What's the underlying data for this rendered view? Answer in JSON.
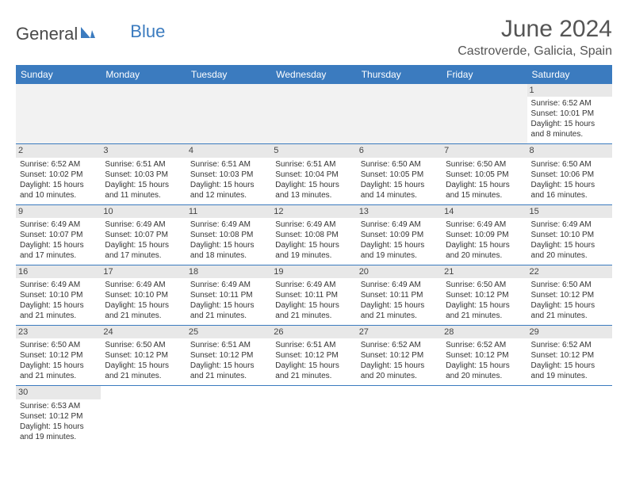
{
  "logo": {
    "text1": "General",
    "text2": "Blue"
  },
  "header": {
    "month": "June 2024",
    "location": "Castroverde, Galicia, Spain"
  },
  "colors": {
    "header_bg": "#3b7bbf",
    "header_text": "#ffffff",
    "daynum_bg": "#e8e8e8",
    "border": "#3b7bbf",
    "empty_bg": "#f2f2f2"
  },
  "weekdays": [
    "Sunday",
    "Monday",
    "Tuesday",
    "Wednesday",
    "Thursday",
    "Friday",
    "Saturday"
  ],
  "weeks": [
    [
      null,
      null,
      null,
      null,
      null,
      null,
      {
        "d": "1",
        "sr": "6:52 AM",
        "ss": "10:01 PM",
        "dl": "15 hours and 8 minutes."
      }
    ],
    [
      {
        "d": "2",
        "sr": "6:52 AM",
        "ss": "10:02 PM",
        "dl": "15 hours and 10 minutes."
      },
      {
        "d": "3",
        "sr": "6:51 AM",
        "ss": "10:03 PM",
        "dl": "15 hours and 11 minutes."
      },
      {
        "d": "4",
        "sr": "6:51 AM",
        "ss": "10:03 PM",
        "dl": "15 hours and 12 minutes."
      },
      {
        "d": "5",
        "sr": "6:51 AM",
        "ss": "10:04 PM",
        "dl": "15 hours and 13 minutes."
      },
      {
        "d": "6",
        "sr": "6:50 AM",
        "ss": "10:05 PM",
        "dl": "15 hours and 14 minutes."
      },
      {
        "d": "7",
        "sr": "6:50 AM",
        "ss": "10:05 PM",
        "dl": "15 hours and 15 minutes."
      },
      {
        "d": "8",
        "sr": "6:50 AM",
        "ss": "10:06 PM",
        "dl": "15 hours and 16 minutes."
      }
    ],
    [
      {
        "d": "9",
        "sr": "6:49 AM",
        "ss": "10:07 PM",
        "dl": "15 hours and 17 minutes."
      },
      {
        "d": "10",
        "sr": "6:49 AM",
        "ss": "10:07 PM",
        "dl": "15 hours and 17 minutes."
      },
      {
        "d": "11",
        "sr": "6:49 AM",
        "ss": "10:08 PM",
        "dl": "15 hours and 18 minutes."
      },
      {
        "d": "12",
        "sr": "6:49 AM",
        "ss": "10:08 PM",
        "dl": "15 hours and 19 minutes."
      },
      {
        "d": "13",
        "sr": "6:49 AM",
        "ss": "10:09 PM",
        "dl": "15 hours and 19 minutes."
      },
      {
        "d": "14",
        "sr": "6:49 AM",
        "ss": "10:09 PM",
        "dl": "15 hours and 20 minutes."
      },
      {
        "d": "15",
        "sr": "6:49 AM",
        "ss": "10:10 PM",
        "dl": "15 hours and 20 minutes."
      }
    ],
    [
      {
        "d": "16",
        "sr": "6:49 AM",
        "ss": "10:10 PM",
        "dl": "15 hours and 21 minutes."
      },
      {
        "d": "17",
        "sr": "6:49 AM",
        "ss": "10:10 PM",
        "dl": "15 hours and 21 minutes."
      },
      {
        "d": "18",
        "sr": "6:49 AM",
        "ss": "10:11 PM",
        "dl": "15 hours and 21 minutes."
      },
      {
        "d": "19",
        "sr": "6:49 AM",
        "ss": "10:11 PM",
        "dl": "15 hours and 21 minutes."
      },
      {
        "d": "20",
        "sr": "6:49 AM",
        "ss": "10:11 PM",
        "dl": "15 hours and 21 minutes."
      },
      {
        "d": "21",
        "sr": "6:50 AM",
        "ss": "10:12 PM",
        "dl": "15 hours and 21 minutes."
      },
      {
        "d": "22",
        "sr": "6:50 AM",
        "ss": "10:12 PM",
        "dl": "15 hours and 21 minutes."
      }
    ],
    [
      {
        "d": "23",
        "sr": "6:50 AM",
        "ss": "10:12 PM",
        "dl": "15 hours and 21 minutes."
      },
      {
        "d": "24",
        "sr": "6:50 AM",
        "ss": "10:12 PM",
        "dl": "15 hours and 21 minutes."
      },
      {
        "d": "25",
        "sr": "6:51 AM",
        "ss": "10:12 PM",
        "dl": "15 hours and 21 minutes."
      },
      {
        "d": "26",
        "sr": "6:51 AM",
        "ss": "10:12 PM",
        "dl": "15 hours and 21 minutes."
      },
      {
        "d": "27",
        "sr": "6:52 AM",
        "ss": "10:12 PM",
        "dl": "15 hours and 20 minutes."
      },
      {
        "d": "28",
        "sr": "6:52 AM",
        "ss": "10:12 PM",
        "dl": "15 hours and 20 minutes."
      },
      {
        "d": "29",
        "sr": "6:52 AM",
        "ss": "10:12 PM",
        "dl": "15 hours and 19 minutes."
      }
    ],
    [
      {
        "d": "30",
        "sr": "6:53 AM",
        "ss": "10:12 PM",
        "dl": "15 hours and 19 minutes."
      },
      null,
      null,
      null,
      null,
      null,
      null
    ]
  ],
  "labels": {
    "sunrise": "Sunrise:",
    "sunset": "Sunset:",
    "daylight": "Daylight:"
  }
}
